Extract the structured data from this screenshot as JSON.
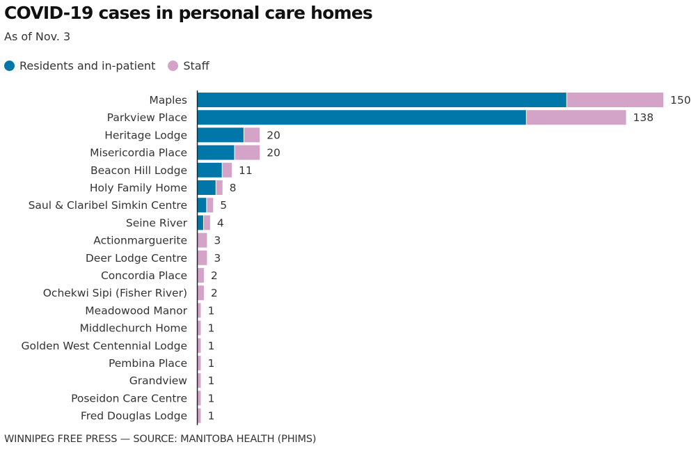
{
  "header": {
    "title": "COVID-19 cases in personal care homes",
    "subtitle": "As of Nov. 3"
  },
  "legend": [
    {
      "label": "Residents and in-patient",
      "color": "#0077a8"
    },
    {
      "label": "Staff",
      "color": "#d3a3c8"
    }
  ],
  "footer": "WINNIPEG FREE PRESS — SOURCE: MANITOBA HEALTH (PHIMS)",
  "chart_data": {
    "type": "bar",
    "orientation": "horizontal",
    "stacked": true,
    "title": "COVID-19 cases in personal care homes",
    "subtitle": "As of Nov. 3",
    "xlabel": "",
    "ylabel": "",
    "xlim": [
      0,
      150
    ],
    "grid": false,
    "legend_position": "top-left",
    "categories": [
      "Maples",
      "Parkview Place",
      "Heritage Lodge",
      "Misericordia Place",
      "Beacon Hill Lodge",
      "Holy Family Home",
      "Saul & Claribel Simkin Centre",
      "Seine River",
      "Actionmarguerite",
      "Deer Lodge Centre",
      "Concordia Place",
      "Ochekwi Sipi (Fisher River)",
      "Meadowood Manor",
      "Middlechurch Home",
      "Golden West Centennial Lodge",
      "Pembina Place",
      "Grandview",
      "Poseidon Care Centre",
      "Fred Douglas Lodge"
    ],
    "series": [
      {
        "name": "Residents and in-patient",
        "color": "#0077a8",
        "values": [
          119,
          106,
          15,
          12,
          8,
          6,
          3,
          2,
          0,
          0,
          0,
          0,
          0,
          0,
          0,
          0,
          0,
          0,
          0
        ]
      },
      {
        "name": "Staff",
        "color": "#d3a3c8",
        "values": [
          31,
          32,
          5,
          8,
          3,
          2,
          2,
          2,
          3,
          3,
          2,
          2,
          1,
          1,
          1,
          1,
          1,
          1,
          1
        ]
      }
    ],
    "totals": [
      150,
      138,
      20,
      20,
      11,
      8,
      5,
      4,
      3,
      3,
      2,
      2,
      1,
      1,
      1,
      1,
      1,
      1,
      1
    ]
  }
}
